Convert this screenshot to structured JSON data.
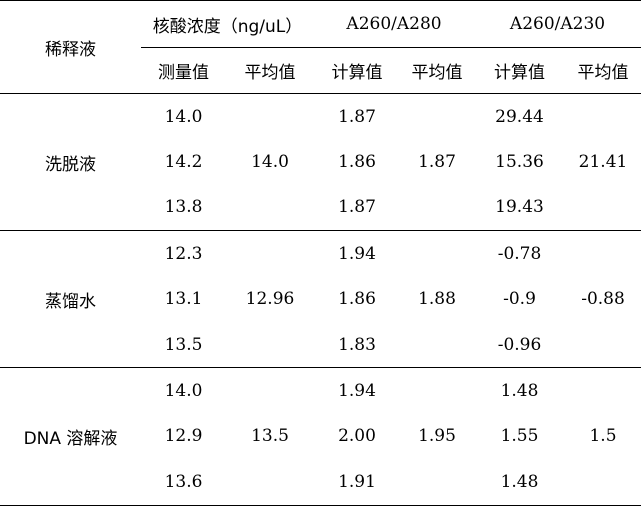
{
  "header": {
    "dilution_label": "稀释液",
    "concentration_label": "核酸浓度（ng/uL）",
    "a260_a280_label": "A260/A280",
    "a260_a230_label": "A260/A230",
    "measured_label": "测量值",
    "average_label": "平均值",
    "calculated_label": "计算值"
  },
  "groups": [
    {
      "name": "洗脱液",
      "conc": [
        "14.0",
        "14.2",
        "13.8"
      ],
      "conc_avg": "14.0",
      "r280": [
        "1.87",
        "1.86",
        "1.87"
      ],
      "r280_avg": "1.87",
      "r230": [
        "29.44",
        "15.36",
        "19.43"
      ],
      "r230_avg": "21.41"
    },
    {
      "name": "蒸馏水",
      "conc": [
        "12.3",
        "13.1",
        "13.5"
      ],
      "conc_avg": "12.96",
      "r280": [
        "1.94",
        "1.86",
        "1.83"
      ],
      "r280_avg": "1.88",
      "r230": [
        "-0.78",
        "-0.9",
        "-0.96"
      ],
      "r230_avg": "-0.88"
    },
    {
      "name": "DNA 溶解液",
      "conc": [
        "14.0",
        "12.9",
        "13.6"
      ],
      "conc_avg": "13.5",
      "r280": [
        "1.94",
        "2.00",
        "1.91"
      ],
      "r280_avg": "1.95",
      "r230": [
        "1.48",
        "1.55",
        "1.48"
      ],
      "r230_avg": "1.5"
    }
  ]
}
